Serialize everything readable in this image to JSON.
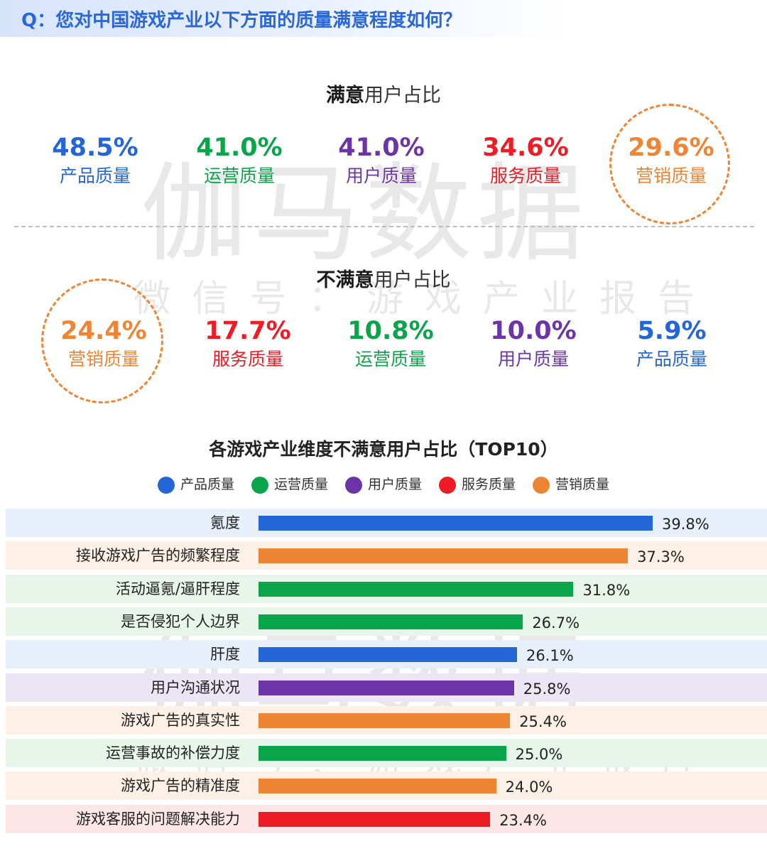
{
  "header": {
    "question": "Q：您对中国游戏产业以下方面的质量满意程度如何？"
  },
  "watermark": {
    "big": "伽马数据",
    "small": "微信号：游戏产业报告"
  },
  "satisfied": {
    "title_bold": "满意",
    "title_rest": "用户占比",
    "items": [
      {
        "value": "48.5%",
        "label": "产品质量",
        "color": "#2466d6"
      },
      {
        "value": "41.0%",
        "label": "运营质量",
        "color": "#0aa54a"
      },
      {
        "value": "41.0%",
        "label": "用户质量",
        "color": "#6b35a8"
      },
      {
        "value": "34.6%",
        "label": "服务质量",
        "color": "#ee1c25"
      },
      {
        "value": "29.6%",
        "label": "营销质量",
        "color": "#ee8534"
      }
    ]
  },
  "dissatisfied": {
    "title_bold": "不满意",
    "title_rest": "用户占比",
    "items": [
      {
        "value": "24.4%",
        "label": "营销质量",
        "color": "#ee8534"
      },
      {
        "value": "17.7%",
        "label": "服务质量",
        "color": "#ee1c25"
      },
      {
        "value": "10.8%",
        "label": "运营质量",
        "color": "#0aa54a"
      },
      {
        "value": "10.0%",
        "label": "用户质量",
        "color": "#6b35a8"
      },
      {
        "value": "5.9%",
        "label": "产品质量",
        "color": "#2466d6"
      }
    ]
  },
  "chart_data": {
    "type": "bar",
    "orientation": "horizontal",
    "title": "各游戏产业维度不满意用户占比（TOP10）",
    "legend": [
      {
        "name": "产品质量",
        "color": "#2466d6",
        "bg": "#e7effb"
      },
      {
        "name": "运营质量",
        "color": "#0aa54a",
        "bg": "#e8f5ea"
      },
      {
        "name": "用户质量",
        "color": "#6b35a8",
        "bg": "#ece5f4"
      },
      {
        "name": "服务质量",
        "color": "#ee1c25",
        "bg": "#fde6e6"
      },
      {
        "name": "营销质量",
        "color": "#ee8534",
        "bg": "#fdf0e6"
      }
    ],
    "categories": [
      "氪度",
      "接收游戏广告的频繁程度",
      "活动逼氪/逼肝程度",
      "是否侵犯个人边界",
      "肝度",
      "用户沟通状况",
      "游戏广告的真实性",
      "运营事故的补偿力度",
      "游戏广告的精准度",
      "游戏客服的问题解决能力"
    ],
    "values": [
      39.8,
      37.3,
      31.8,
      26.7,
      26.1,
      25.8,
      25.4,
      25.0,
      24.0,
      23.4
    ],
    "value_labels": [
      "39.8%",
      "37.3%",
      "31.8%",
      "26.7%",
      "26.1%",
      "25.8%",
      "25.4%",
      "25.0%",
      "24.0%",
      "23.4%"
    ],
    "groups": [
      "产品质量",
      "营销质量",
      "运营质量",
      "运营质量",
      "产品质量",
      "用户质量",
      "营销质量",
      "运营质量",
      "营销质量",
      "服务质量"
    ],
    "xlim": [
      0,
      39.8
    ]
  }
}
